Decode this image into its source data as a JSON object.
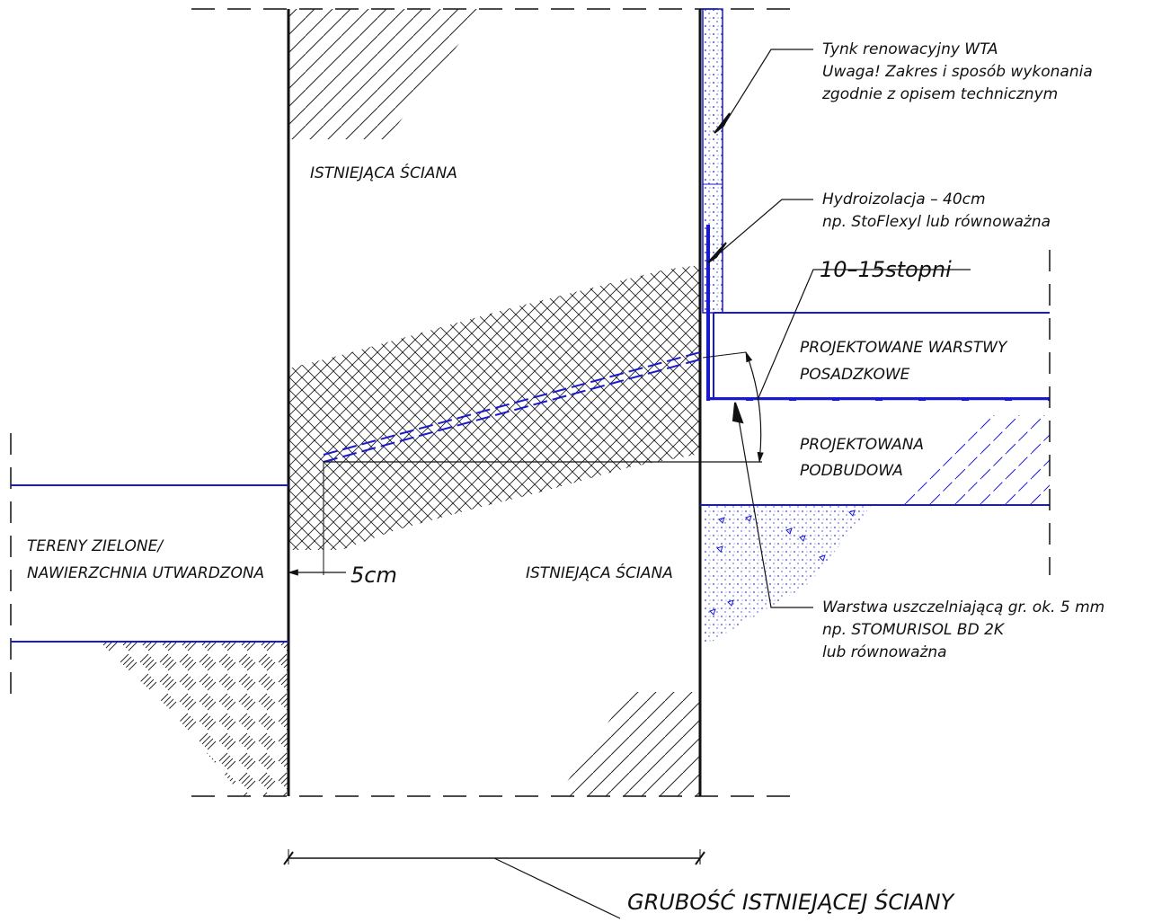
{
  "labels": {
    "wall_upper": "ISTNIEJĄCA ŚCIANA",
    "wall_lower": "ISTNIEJĄCA ŚCIANA",
    "plaster_line1": "Tynk renowacyjny WTA",
    "plaster_line2": "Uwaga! Zakres i sposób wykonania",
    "plaster_line3": "zgodnie z opisem technicznym",
    "waterproof_line1": "Hydroizolacja – 40cm",
    "waterproof_line2": "np. StoFlexyl lub równoważna",
    "angle": "10–15stopni",
    "floor_line1": "PROJEKTOWANE WARSTWY",
    "floor_line2": "POSADZKOWE",
    "base_line1": "PROJEKTOWANA",
    "base_line2": "PODBUDOWA",
    "ground_line1": "TERENY ZIELONE/",
    "ground_line2": "NAWIERZCHNIA UTWARDZONA",
    "offset": "5cm",
    "sealing_line1": "Warstwa uszczelniającą gr. ok. 5 mm",
    "sealing_line2": "np. STOMURISOL BD 2K",
    "sealing_line3": "lub równoważna",
    "thickness": "GRUBOŚĆ ISTNIEJĄCEJ ŚCIANY"
  },
  "colors": {
    "line": "#111111",
    "accent": "#1a1acc",
    "hatch": "#222222"
  }
}
